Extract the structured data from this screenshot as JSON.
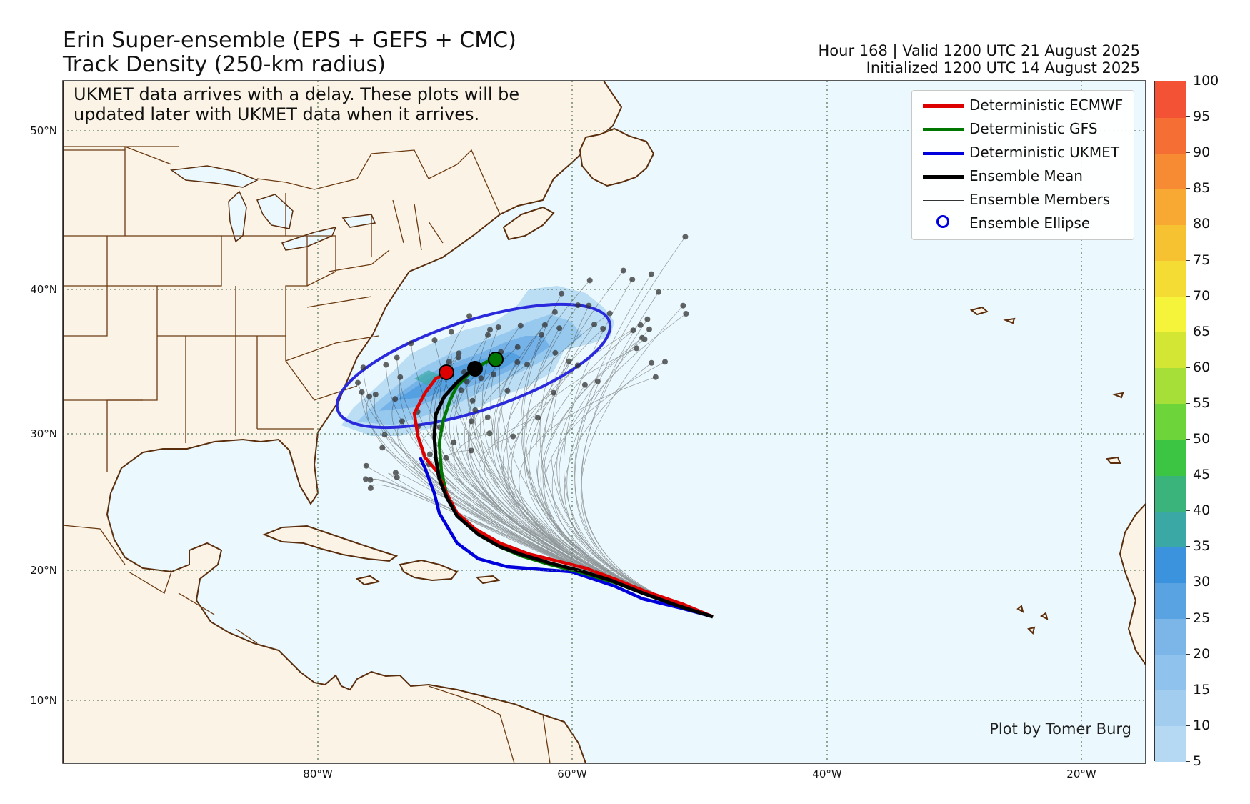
{
  "header": {
    "title_line1": "Erin Super-ensemble (EPS + GEFS + CMC)",
    "title_line2": "Track Density (250-km radius)",
    "valid": "Hour 168 | Valid 1200 UTC 21 August 2025",
    "initialized": "Initialized 1200 UTC 14 August 2025"
  },
  "note": {
    "line1": "UKMET data arrives with a delay. These plots will be",
    "line2": "updated later with UKMET data when it arrives."
  },
  "credit": "Plot by Tomer Burg",
  "legend": {
    "items": [
      {
        "label": "Deterministic ECMWF",
        "color": "#dd0000",
        "kind": "thick"
      },
      {
        "label": "Deterministic GFS",
        "color": "#007700",
        "kind": "thick"
      },
      {
        "label": "Deterministic UKMET",
        "color": "#0000dd",
        "kind": "thick"
      },
      {
        "label": "Ensemble Mean",
        "color": "#000000",
        "kind": "thick"
      },
      {
        "label": "Ensemble Members",
        "color": "#000000",
        "kind": "thin"
      },
      {
        "label": "Ensemble Ellipse",
        "color": "#0000dd",
        "kind": "circle"
      }
    ]
  },
  "axes": {
    "lat_labels": [
      "50°N",
      "40°N",
      "30°N",
      "20°N",
      "10°N"
    ],
    "lon_labels": [
      "80°W",
      "60°W",
      "40°W",
      "20°W"
    ]
  },
  "colorbar": {
    "levels": [
      "5",
      "10",
      "15",
      "20",
      "25",
      "30",
      "35",
      "40",
      "45",
      "50",
      "55",
      "60",
      "65",
      "70",
      "75",
      "80",
      "85",
      "90",
      "95",
      "100"
    ],
    "colors": [
      "#b5d9f2",
      "#a3cdef",
      "#8fc2ec",
      "#7cb6e9",
      "#5aa3e3",
      "#3a93dc",
      "#3aa9a5",
      "#3ab47a",
      "#3bc543",
      "#6dd43a",
      "#a6df38",
      "#d2e633",
      "#f5f33a",
      "#f4dc35",
      "#f6c232",
      "#f7a933",
      "#f78b33",
      "#f56e34",
      "#f45235",
      "#f23535"
    ]
  },
  "map_colors": {
    "ocean": "#ebf8fd",
    "land": "#fbf4e6",
    "coast": "#5a2d0c",
    "ecmwf": "#dd0000",
    "gfs": "#007700",
    "ukmet": "#0000dd",
    "mean": "#000000",
    "ellipse": "#2a2adc"
  }
}
